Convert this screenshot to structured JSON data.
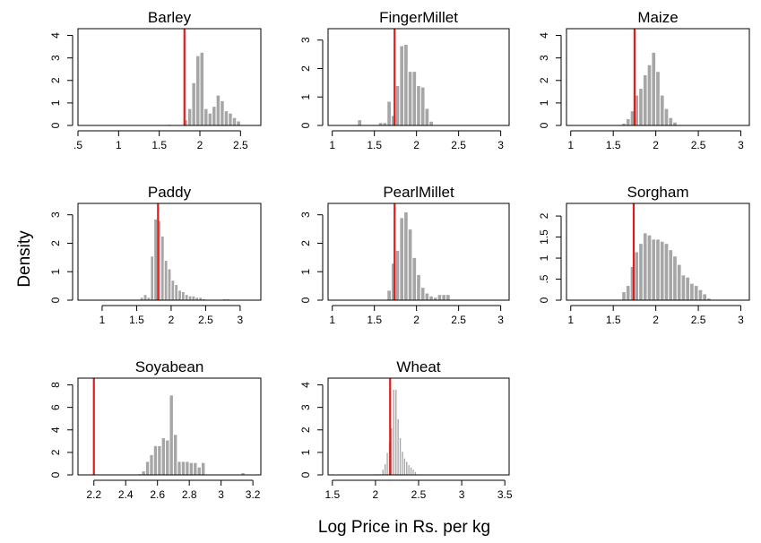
{
  "figure": {
    "xlabel": "Log Price in Rs. per kg",
    "ylabel": "Density"
  },
  "style": {
    "bar_color": "#a6a6a6",
    "bar_outline": "#ffffff",
    "reference_line_color": "#e31a1c",
    "frame_color": "#000000"
  },
  "chart_data": [
    {
      "type": "bar",
      "title": "Barley",
      "xlim": [
        0.5,
        2.75
      ],
      "ylim": [
        0,
        4.3
      ],
      "x_ticks": [
        0.5,
        1,
        1.5,
        2,
        2.5
      ],
      "x_tick_labels": [
        ".5",
        "1",
        "1.5",
        "2",
        "2.5"
      ],
      "y_ticks": [
        0,
        1,
        2,
        3,
        4
      ],
      "y_tick_labels": [
        "0",
        "1",
        "2",
        "3",
        "4"
      ],
      "bin_width": 0.05,
      "bins": [
        {
          "x": 1.625,
          "y": 0.05
        },
        {
          "x": 1.675,
          "y": 0.0
        },
        {
          "x": 1.725,
          "y": 0.0
        },
        {
          "x": 1.775,
          "y": 0.0
        },
        {
          "x": 1.825,
          "y": 0.25
        },
        {
          "x": 1.875,
          "y": 0.75
        },
        {
          "x": 1.925,
          "y": 1.9
        },
        {
          "x": 1.975,
          "y": 3.1
        },
        {
          "x": 2.025,
          "y": 3.25
        },
        {
          "x": 2.075,
          "y": 0.75
        },
        {
          "x": 2.125,
          "y": 0.55
        },
        {
          "x": 2.175,
          "y": 0.85
        },
        {
          "x": 2.225,
          "y": 1.35
        },
        {
          "x": 2.275,
          "y": 1.1
        },
        {
          "x": 2.325,
          "y": 0.65
        },
        {
          "x": 2.375,
          "y": 0.55
        },
        {
          "x": 2.425,
          "y": 0.35
        },
        {
          "x": 2.475,
          "y": 0.2
        },
        {
          "x": 2.525,
          "y": 0.02
        }
      ],
      "reference_line": 1.81
    },
    {
      "type": "bar",
      "title": "FingerMillet",
      "xlim": [
        0.95,
        3.1
      ],
      "ylim": [
        0,
        3.4
      ],
      "x_ticks": [
        1,
        1.5,
        2,
        2.5,
        3
      ],
      "x_tick_labels": [
        "1",
        "1.5",
        "2",
        "2.5",
        "3"
      ],
      "y_ticks": [
        0,
        1,
        2,
        3
      ],
      "y_tick_labels": [
        "0",
        "1",
        "2",
        "3"
      ],
      "bin_width": 0.05,
      "bins": [
        {
          "x": 1.325,
          "y": 0.2
        },
        {
          "x": 1.375,
          "y": 0.0
        },
        {
          "x": 1.425,
          "y": 0.0
        },
        {
          "x": 1.475,
          "y": 0.0
        },
        {
          "x": 1.525,
          "y": 0.0
        },
        {
          "x": 1.575,
          "y": 0.1
        },
        {
          "x": 1.625,
          "y": 0.1
        },
        {
          "x": 1.675,
          "y": 0.85
        },
        {
          "x": 1.725,
          "y": 0.35
        },
        {
          "x": 1.775,
          "y": 1.4
        },
        {
          "x": 1.825,
          "y": 2.8
        },
        {
          "x": 1.875,
          "y": 2.85
        },
        {
          "x": 1.925,
          "y": 1.9
        },
        {
          "x": 1.975,
          "y": 1.9
        },
        {
          "x": 2.025,
          "y": 1.4
        },
        {
          "x": 2.075,
          "y": 1.35
        },
        {
          "x": 2.125,
          "y": 0.6
        },
        {
          "x": 2.175,
          "y": 0.15
        }
      ],
      "reference_line": 1.74
    },
    {
      "type": "bar",
      "title": "Maize",
      "xlim": [
        0.95,
        3.1
      ],
      "ylim": [
        0,
        4.3
      ],
      "x_ticks": [
        1,
        1.5,
        2,
        2.5,
        3
      ],
      "x_tick_labels": [
        "1",
        "1.5",
        "2",
        "2.5",
        "3"
      ],
      "y_ticks": [
        0,
        1,
        2,
        3,
        4
      ],
      "y_tick_labels": [
        "0",
        "1",
        "2",
        "3",
        "4"
      ],
      "bin_width": 0.05,
      "bins": [
        {
          "x": 1.575,
          "y": 0.03
        },
        {
          "x": 1.625,
          "y": 0.1
        },
        {
          "x": 1.675,
          "y": 0.3
        },
        {
          "x": 1.725,
          "y": 0.65
        },
        {
          "x": 1.775,
          "y": 1.35
        },
        {
          "x": 1.825,
          "y": 1.65
        },
        {
          "x": 1.875,
          "y": 2.25
        },
        {
          "x": 1.925,
          "y": 2.7
        },
        {
          "x": 1.975,
          "y": 3.25
        },
        {
          "x": 2.025,
          "y": 2.4
        },
        {
          "x": 2.075,
          "y": 1.35
        },
        {
          "x": 2.125,
          "y": 0.75
        },
        {
          "x": 2.175,
          "y": 0.35
        },
        {
          "x": 2.225,
          "y": 0.15
        }
      ],
      "reference_line": 1.75
    },
    {
      "type": "bar",
      "title": "Paddy",
      "xlim": [
        0.65,
        3.3
      ],
      "ylim": [
        0,
        3.4
      ],
      "x_ticks": [
        1,
        1.5,
        2,
        2.5,
        3
      ],
      "x_tick_labels": [
        "1",
        "1.5",
        "2",
        "2.5",
        "3"
      ],
      "y_ticks": [
        0,
        1,
        2,
        3
      ],
      "y_tick_labels": [
        "0",
        "1",
        "2",
        "3"
      ],
      "bin_width": 0.05,
      "bins": [
        {
          "x": 1.575,
          "y": 0.1
        },
        {
          "x": 1.625,
          "y": 0.2
        },
        {
          "x": 1.675,
          "y": 0.1
        },
        {
          "x": 1.725,
          "y": 1.55
        },
        {
          "x": 1.775,
          "y": 2.85
        },
        {
          "x": 1.825,
          "y": 2.8
        },
        {
          "x": 1.875,
          "y": 2.25
        },
        {
          "x": 1.925,
          "y": 1.4
        },
        {
          "x": 1.975,
          "y": 1.1
        },
        {
          "x": 2.025,
          "y": 0.7
        },
        {
          "x": 2.075,
          "y": 0.55
        },
        {
          "x": 2.125,
          "y": 0.35
        },
        {
          "x": 2.175,
          "y": 0.3
        },
        {
          "x": 2.225,
          "y": 0.2
        },
        {
          "x": 2.275,
          "y": 0.15
        },
        {
          "x": 2.325,
          "y": 0.15
        },
        {
          "x": 2.375,
          "y": 0.1
        },
        {
          "x": 2.425,
          "y": 0.1
        },
        {
          "x": 2.475,
          "y": 0.05
        },
        {
          "x": 2.525,
          "y": 0.0
        },
        {
          "x": 2.575,
          "y": 0.0
        },
        {
          "x": 2.625,
          "y": 0.02
        },
        {
          "x": 2.675,
          "y": 0.0
        },
        {
          "x": 2.725,
          "y": 0.0
        },
        {
          "x": 2.775,
          "y": 0.05
        },
        {
          "x": 2.825,
          "y": 0.05
        }
      ],
      "reference_line": 1.81
    },
    {
      "type": "bar",
      "title": "PearlMillet",
      "xlim": [
        0.95,
        3.1
      ],
      "ylim": [
        0,
        3.4
      ],
      "x_ticks": [
        1,
        1.5,
        2,
        2.5,
        3
      ],
      "x_tick_labels": [
        "1",
        "1.5",
        "2",
        "2.5",
        "3"
      ],
      "y_ticks": [
        0,
        1,
        2,
        3
      ],
      "y_tick_labels": [
        "0",
        "1",
        "2",
        "3"
      ],
      "bin_width": 0.05,
      "bins": [
        {
          "x": 1.675,
          "y": 0.35
        },
        {
          "x": 1.725,
          "y": 1.3
        },
        {
          "x": 1.775,
          "y": 1.75
        },
        {
          "x": 1.825,
          "y": 2.9
        },
        {
          "x": 1.875,
          "y": 3.1
        },
        {
          "x": 1.925,
          "y": 2.5
        },
        {
          "x": 1.975,
          "y": 1.5
        },
        {
          "x": 2.025,
          "y": 0.9
        },
        {
          "x": 2.075,
          "y": 0.45
        },
        {
          "x": 2.125,
          "y": 0.25
        },
        {
          "x": 2.175,
          "y": 0.15
        },
        {
          "x": 2.225,
          "y": 0.1
        },
        {
          "x": 2.275,
          "y": 0.2
        },
        {
          "x": 2.325,
          "y": 0.2
        },
        {
          "x": 2.375,
          "y": 0.2
        }
      ],
      "reference_line": 1.74
    },
    {
      "type": "bar",
      "title": "Sorgham",
      "xlim": [
        0.95,
        3.1
      ],
      "ylim": [
        0,
        2.3
      ],
      "x_ticks": [
        1,
        1.5,
        2,
        2.5,
        3
      ],
      "x_tick_labels": [
        "1",
        "1.5",
        "2",
        "2.5",
        "3"
      ],
      "y_ticks": [
        0,
        0.5,
        1,
        1.5,
        2
      ],
      "y_tick_labels": [
        "0",
        ".5",
        "1",
        "1.5",
        "2"
      ],
      "bin_width": 0.05,
      "bins": [
        {
          "x": 1.625,
          "y": 0.2
        },
        {
          "x": 1.675,
          "y": 0.35
        },
        {
          "x": 1.725,
          "y": 0.8
        },
        {
          "x": 1.775,
          "y": 1.15
        },
        {
          "x": 1.825,
          "y": 1.35
        },
        {
          "x": 1.875,
          "y": 1.6
        },
        {
          "x": 1.925,
          "y": 1.55
        },
        {
          "x": 1.975,
          "y": 1.45
        },
        {
          "x": 2.025,
          "y": 1.45
        },
        {
          "x": 2.075,
          "y": 1.4
        },
        {
          "x": 2.125,
          "y": 1.35
        },
        {
          "x": 2.175,
          "y": 1.2
        },
        {
          "x": 2.225,
          "y": 1.05
        },
        {
          "x": 2.275,
          "y": 0.85
        },
        {
          "x": 2.325,
          "y": 0.6
        },
        {
          "x": 2.375,
          "y": 0.55
        },
        {
          "x": 2.425,
          "y": 0.4
        },
        {
          "x": 2.475,
          "y": 0.35
        },
        {
          "x": 2.525,
          "y": 0.25
        },
        {
          "x": 2.575,
          "y": 0.15
        },
        {
          "x": 2.625,
          "y": 0.05
        },
        {
          "x": 2.675,
          "y": 0.0
        },
        {
          "x": 2.725,
          "y": 0.02
        }
      ],
      "reference_line": 1.74
    },
    {
      "type": "bar",
      "title": "Soyabean",
      "xlim": [
        2.1,
        3.25
      ],
      "ylim": [
        0,
        8.6
      ],
      "x_ticks": [
        2.2,
        2.4,
        2.6,
        2.8,
        3,
        3.2
      ],
      "x_tick_labels": [
        "2.2",
        "2.4",
        "2.6",
        "2.8",
        "3",
        "3.2"
      ],
      "y_ticks": [
        0,
        2,
        4,
        6,
        8
      ],
      "y_tick_labels": [
        "0",
        "2",
        "4",
        "6",
        "8"
      ],
      "bin_width": 0.025,
      "bins": [
        {
          "x": 2.4875,
          "y": 0.1
        },
        {
          "x": 2.5125,
          "y": 0.35
        },
        {
          "x": 2.5375,
          "y": 1.2
        },
        {
          "x": 2.5625,
          "y": 1.8
        },
        {
          "x": 2.5875,
          "y": 2.6
        },
        {
          "x": 2.6125,
          "y": 2.6
        },
        {
          "x": 2.6375,
          "y": 3.3
        },
        {
          "x": 2.6625,
          "y": 3.1
        },
        {
          "x": 2.6875,
          "y": 7.1
        },
        {
          "x": 2.7125,
          "y": 3.6
        },
        {
          "x": 2.7375,
          "y": 1.2
        },
        {
          "x": 2.7625,
          "y": 1.2
        },
        {
          "x": 2.7875,
          "y": 1.2
        },
        {
          "x": 2.8125,
          "y": 1.1
        },
        {
          "x": 2.8375,
          "y": 1.1
        },
        {
          "x": 2.8625,
          "y": 0.7
        },
        {
          "x": 2.8875,
          "y": 1.1
        },
        {
          "x": 3.1375,
          "y": 0.2
        }
      ],
      "reference_line": 2.2
    },
    {
      "type": "bar",
      "title": "Wheat",
      "xlim": [
        1.45,
        3.55
      ],
      "ylim": [
        0,
        4.3
      ],
      "x_ticks": [
        1.5,
        2,
        2.5,
        3,
        3.5
      ],
      "x_tick_labels": [
        "1.5",
        "2",
        "2.5",
        "3",
        "3.5"
      ],
      "y_ticks": [
        0,
        1,
        2,
        3,
        4
      ],
      "y_tick_labels": [
        "0",
        "1",
        "2",
        "3",
        "4"
      ],
      "bin_width": 0.025,
      "bins": [
        {
          "x": 2.0125,
          "y": 0.05
        },
        {
          "x": 2.0375,
          "y": 0.05
        },
        {
          "x": 2.0625,
          "y": 0.05
        },
        {
          "x": 2.0875,
          "y": 0.25
        },
        {
          "x": 2.1125,
          "y": 0.5
        },
        {
          "x": 2.1375,
          "y": 1.0
        },
        {
          "x": 2.1625,
          "y": 1.45
        },
        {
          "x": 2.1875,
          "y": 2.1
        },
        {
          "x": 2.2125,
          "y": 3.8
        },
        {
          "x": 2.2375,
          "y": 3.8
        },
        {
          "x": 2.2625,
          "y": 2.5
        },
        {
          "x": 2.2875,
          "y": 1.65
        },
        {
          "x": 2.3125,
          "y": 1.05
        },
        {
          "x": 2.3375,
          "y": 0.75
        },
        {
          "x": 2.3625,
          "y": 0.6
        },
        {
          "x": 2.3875,
          "y": 0.45
        },
        {
          "x": 2.4125,
          "y": 0.35
        },
        {
          "x": 2.4375,
          "y": 0.25
        },
        {
          "x": 2.4625,
          "y": 0.15
        },
        {
          "x": 2.4875,
          "y": 0.05
        }
      ],
      "reference_line": 2.17
    }
  ]
}
